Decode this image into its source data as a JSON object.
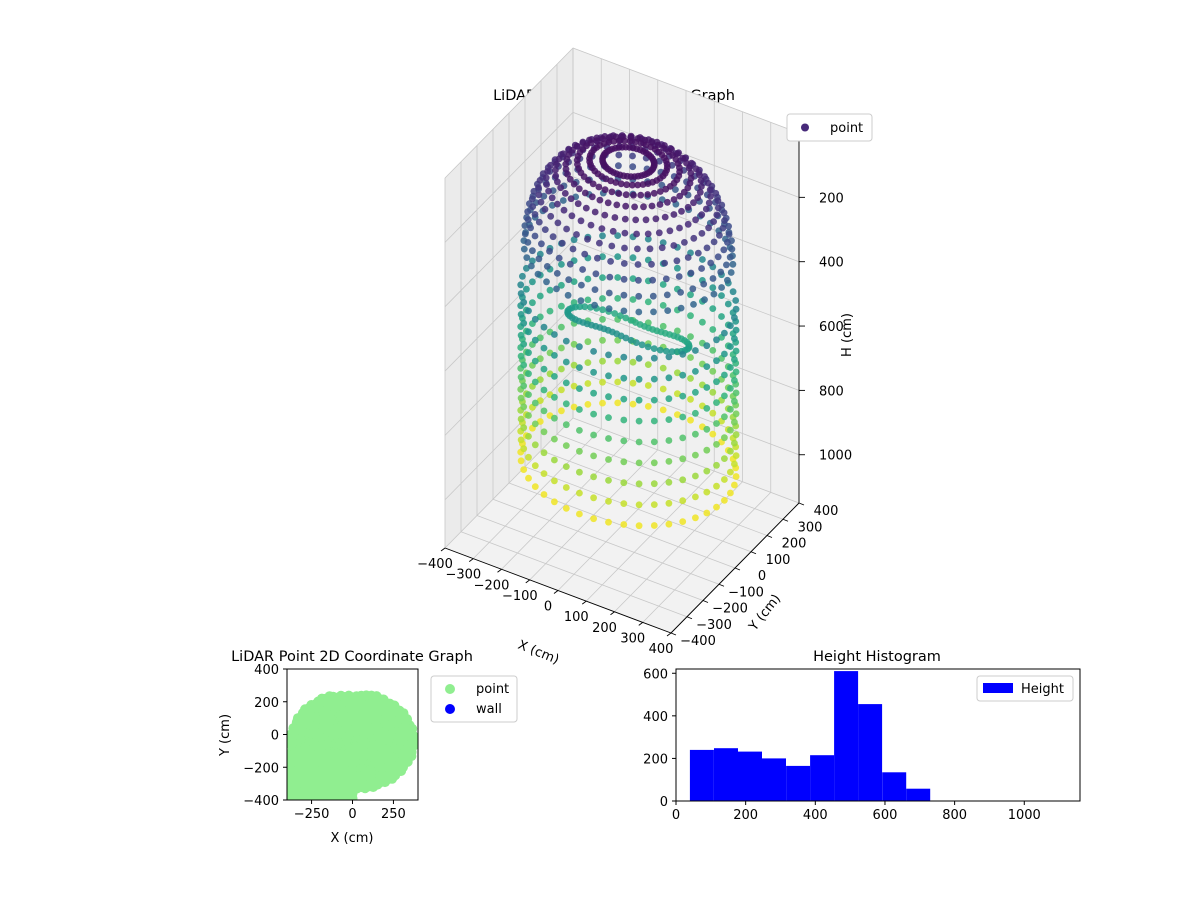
{
  "chart_data": [
    {
      "type": "scatter3d",
      "title": "LiDAR Point 3D Coordinate Graph",
      "xlabel": "X (cm)",
      "ylabel": "Y (cm)",
      "zlabel": "H (cm)",
      "xlim": [
        -400,
        400
      ],
      "ylim": [
        -400,
        400
      ],
      "zlim": [
        1150,
        0
      ],
      "x_ticks": [
        -400,
        -300,
        -200,
        -100,
        0,
        100,
        200,
        300,
        400
      ],
      "y_ticks": [
        -400,
        -300,
        -200,
        -100,
        0,
        100,
        200,
        300,
        400
      ],
      "z_ticks": [
        0,
        200,
        400,
        600,
        800,
        1000
      ],
      "z_inverted": true,
      "colormap": "viridis",
      "legend": {
        "entries": [
          "point"
        ],
        "placement": "top-right"
      },
      "series": [
        {
          "name": "point",
          "description_shape": "dome-shaped point cloud with cylindrical walls, radius about 400 cm",
          "points_sampled": "generated by script from a cylinder+dome model"
        }
      ]
    },
    {
      "type": "scatter",
      "title": "LiDAR Point 2D Coordinate Graph",
      "xlabel": "X (cm)",
      "ylabel": "Y (cm)",
      "xlim": [
        -400,
        400
      ],
      "ylim": [
        -400,
        400
      ],
      "x_ticks": [
        -250,
        0,
        250
      ],
      "y_ticks": [
        -400,
        -200,
        0,
        200,
        400
      ],
      "legend": {
        "entries": [
          "point",
          "wall"
        ],
        "placement": "outside-right"
      },
      "series": [
        {
          "name": "point",
          "color": "#90ee90"
        },
        {
          "name": "wall",
          "color": "#0000ff"
        }
      ]
    },
    {
      "type": "bar",
      "subtype": "histogram",
      "title": "Height Histogram",
      "xlabel": "",
      "ylabel": "",
      "xlim": [
        0,
        1160
      ],
      "ylim": [
        0,
        620
      ],
      "x_ticks": [
        0,
        200,
        400,
        600,
        800,
        1000
      ],
      "y_ticks": [
        0,
        200,
        400,
        600
      ],
      "legend": {
        "entries": [
          "Height"
        ],
        "placement": "top-right"
      },
      "color": "#0000ff",
      "series": [
        {
          "name": "Height",
          "bins": [
            40,
            109,
            178,
            247,
            316,
            385,
            454,
            523,
            592,
            661,
            730,
            799,
            868,
            937,
            1006,
            1075,
            1144
          ],
          "values": [
            240,
            248,
            232,
            200,
            165,
            215,
            610,
            455,
            135,
            58,
            0,
            0,
            0,
            0,
            0,
            0
          ]
        }
      ]
    }
  ]
}
